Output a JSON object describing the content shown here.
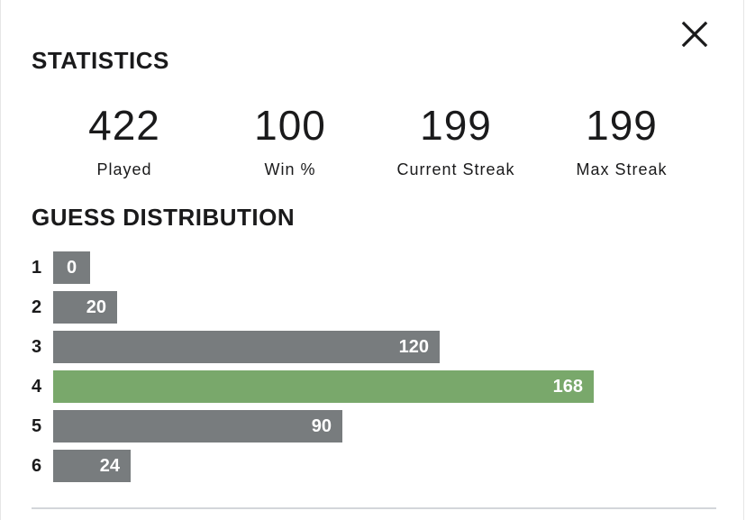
{
  "stats_title": "STATISTICS",
  "stats": [
    {
      "value": "422",
      "label": "Played"
    },
    {
      "value": "100",
      "label": "Win %"
    },
    {
      "value": "199",
      "label": "Current Streak"
    },
    {
      "value": "199",
      "label": "Max Streak"
    }
  ],
  "guess_title": "GUESS DISTRIBUTION",
  "distribution": [
    {
      "guess": "1",
      "count": 0
    },
    {
      "guess": "2",
      "count": 20
    },
    {
      "guess": "3",
      "count": 120
    },
    {
      "guess": "4",
      "count": 168,
      "highlight": true
    },
    {
      "guess": "5",
      "count": 90
    },
    {
      "guess": "6",
      "count": 24
    }
  ],
  "colors": {
    "bar": "#787c7e",
    "bar_highlight": "#79a86b",
    "text": "#1a1a1b"
  },
  "icons": {
    "close": "close-icon"
  }
}
